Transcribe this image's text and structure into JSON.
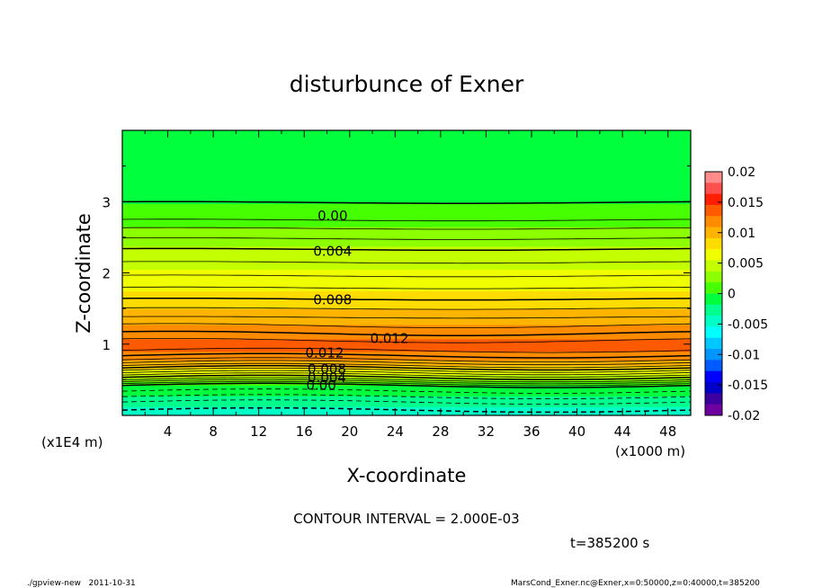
{
  "chart_data": {
    "type": "contour",
    "title": "disturbunce of Exner",
    "xlabel": "X-coordinate",
    "ylabel": "Z-coordinate",
    "x_unit": "(x1000 m)",
    "y_unit": "(x1E4 m)",
    "xlim": [
      0,
      50
    ],
    "ylim": [
      0,
      4
    ],
    "x_ticks": [
      4,
      8,
      12,
      16,
      20,
      24,
      28,
      32,
      36,
      40,
      44,
      48
    ],
    "y_ticks": [
      1,
      2,
      3
    ],
    "contour_interval_text": "CONTOUR INTERVAL = 2.000E-03",
    "time_text": "t=385200 s",
    "footer_left": "./gpview-new   2011-10-31",
    "footer_right": "MarsCond_Exner.nc@Exner,x=0:50000,z=0:40000,t=385200",
    "colorbar": {
      "ticks": [
        "0.02",
        "0.015",
        "0.01",
        "0.005",
        "0",
        "-0.005",
        "-0.01",
        "-0.015",
        "-0.02"
      ],
      "range": [
        -0.02,
        0.02
      ],
      "colors": [
        "#ff8c8c",
        "#ff5050",
        "#ff1e00",
        "#ff5a00",
        "#ff8c00",
        "#ffb400",
        "#ffdc00",
        "#f0ff00",
        "#c3ff00",
        "#8cff00",
        "#46ff00",
        "#00ff3c",
        "#00ff8c",
        "#00ffc8",
        "#00ffff",
        "#00c8ff",
        "#0096ff",
        "#005aff",
        "#0000ff",
        "#0000c8",
        "#3c00a0",
        "#6e00a0"
      ]
    },
    "contour_labels": [
      {
        "text": "0.00",
        "x": 18.5,
        "z": 2.8
      },
      {
        "text": "0.004",
        "x": 18.5,
        "z": 2.3
      },
      {
        "text": "0.008",
        "x": 18.5,
        "z": 1.62
      },
      {
        "text": "0.012",
        "x": 23.5,
        "z": 1.08
      },
      {
        "text": "0.012",
        "x": 17.8,
        "z": 0.88
      },
      {
        "text": "0.008",
        "x": 18,
        "z": 0.65
      },
      {
        "text": "0.004",
        "x": 18,
        "z": 0.53
      },
      {
        "text": "0.00",
        "x": 17.5,
        "z": 0.42
      }
    ]
  }
}
